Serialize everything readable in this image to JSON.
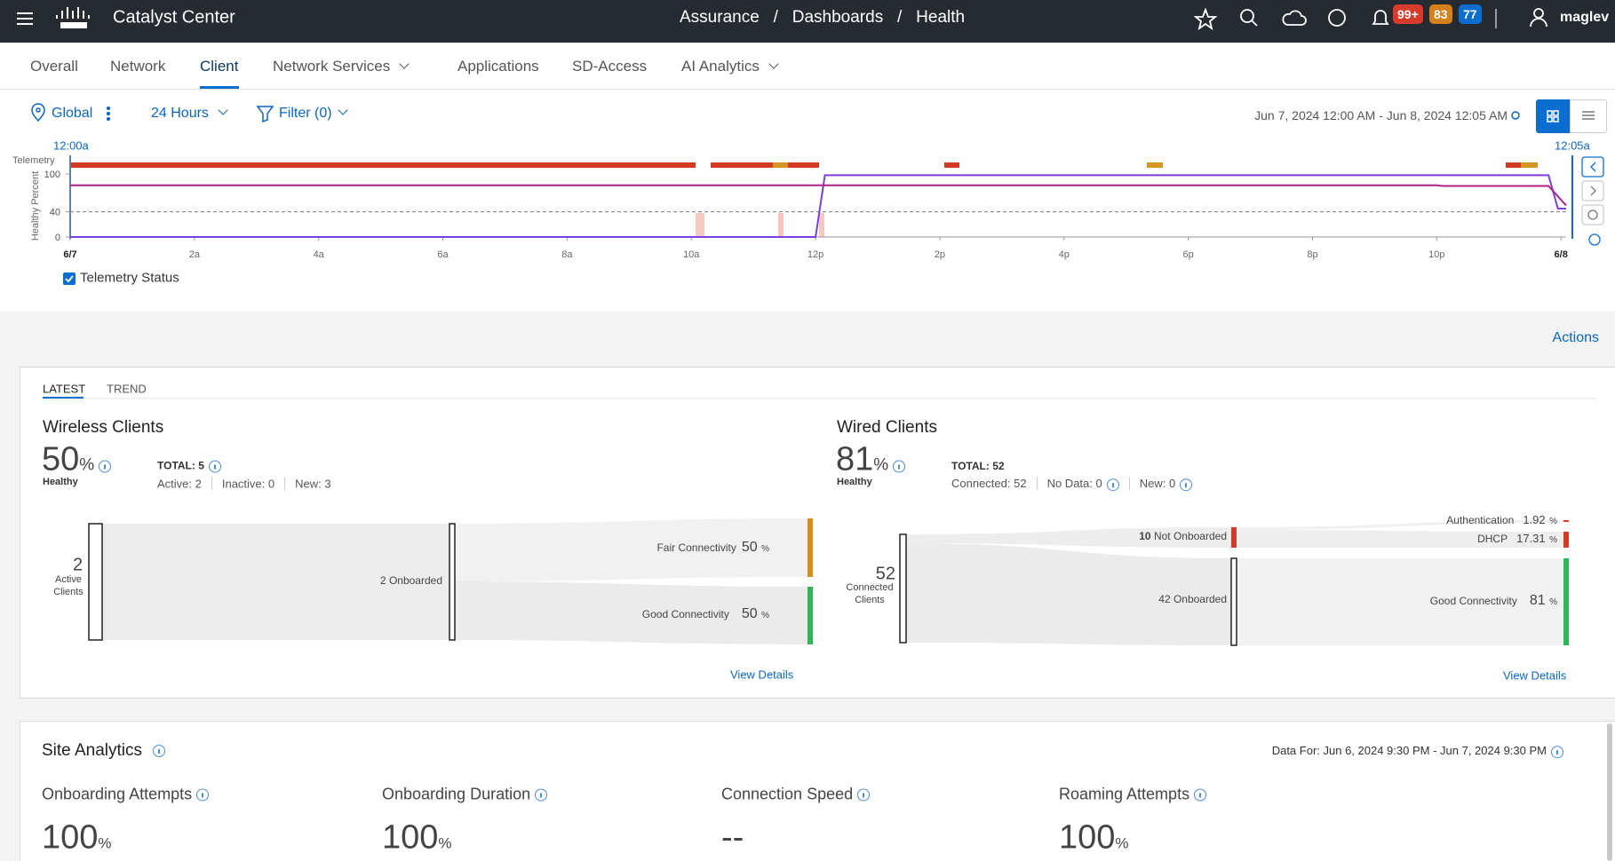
{
  "header": {
    "product": "Catalyst Center",
    "breadcrumb": [
      "Assurance",
      "/",
      "Dashboards",
      "/",
      "Health"
    ],
    "badges": [
      "99+",
      "83",
      "77"
    ],
    "user": "maglev"
  },
  "tabs": {
    "items": [
      "Overall",
      "Network",
      "Client",
      "Network Services",
      "Applications",
      "SD-Access",
      "AI Analytics"
    ],
    "active": 2
  },
  "filters": {
    "location": "Global",
    "range": "24 Hours",
    "filter": "Filter (0)",
    "date_range": "Jun 7, 2024 12:00 AM - Jun 8, 2024 12:05 AM"
  },
  "timeline": {
    "start_label": "12:00a",
    "end_label": "12:05a",
    "telemetry_label": "Telemetry",
    "y_title": "Healthy Percent",
    "xlim": [
      0,
      24.083
    ],
    "ylim": [
      0,
      100
    ],
    "yticks": [
      0,
      40,
      100
    ],
    "threshold": 40,
    "xticks": [
      {
        "value": 0,
        "label": "6/7"
      },
      {
        "value": 2,
        "label": "2a"
      },
      {
        "value": 4,
        "label": "4a"
      },
      {
        "value": 6,
        "label": "6a"
      },
      {
        "value": 8,
        "label": "8a"
      },
      {
        "value": 10,
        "label": "10a"
      },
      {
        "value": 12,
        "label": "12p"
      },
      {
        "value": 14,
        "label": "2p"
      },
      {
        "value": 16,
        "label": "4p"
      },
      {
        "value": 18,
        "label": "6p"
      },
      {
        "value": 20,
        "label": "8p"
      },
      {
        "value": 22,
        "label": "10p"
      },
      {
        "value": 24,
        "label": "6/8"
      }
    ],
    "series": [
      {
        "color": "#7b3fe4",
        "x": [
          0,
          12,
          12.15,
          23.8,
          23.95,
          24.083
        ],
        "values": [
          0,
          0,
          98,
          98,
          45,
          45
        ]
      },
      {
        "color": "#b0208a",
        "x": [
          0,
          22,
          22.1,
          23.8,
          24.083
        ],
        "values": [
          82,
          82,
          81,
          81,
          50
        ]
      }
    ],
    "legend": "Telemetry Status"
  },
  "actions": "Actions",
  "health": {
    "tabs": [
      "LATEST",
      "TREND"
    ],
    "wireless": {
      "title": "Wireless Clients",
      "score": "50",
      "unit": "%",
      "status": "Healthy",
      "total": "TOTAL: 5",
      "stats": [
        "Active: 2",
        "Inactive: 0",
        "New: 3"
      ],
      "active_count": "2",
      "active_label": "Active Clients",
      "onboarded": "2 Onboarded",
      "fair_label": "Fair Connectivity",
      "fair_value": "50",
      "fair_unit": "%",
      "good_label": "Good Connectivity",
      "good_value": "50",
      "good_unit": "%",
      "link": "View Details"
    },
    "wired": {
      "title": "Wired Clients",
      "score": "81",
      "unit": "%",
      "status": "Healthy",
      "total": "TOTAL: 52",
      "stats": [
        "Connected: 52",
        "No Data: 0",
        "New: 0"
      ],
      "connected_count": "52",
      "connected_label": "Connected Clients",
      "not_onboarded_count": "10",
      "not_onboarded_label": "Not Onboarded",
      "onboarded": "42 Onboarded",
      "auth_label": "Authentication",
      "auth_value": "1.92",
      "auth_unit": "%",
      "dhcp_label": "DHCP",
      "dhcp_value": "17.31",
      "dhcp_unit": "%",
      "good_label": "Good Connectivity",
      "good_value": "81",
      "good_unit": "%",
      "link": "View Details"
    }
  },
  "site_analytics": {
    "title": "Site Analytics",
    "data_for": "Data For: Jun 6, 2024 9:30 PM - Jun 7, 2024 9:30 PM",
    "metrics": [
      {
        "name": "Onboarding Attempts",
        "value": "100",
        "unit": "%"
      },
      {
        "name": "Onboarding Duration",
        "value": "100",
        "unit": "%"
      },
      {
        "name": "Connection Speed",
        "value": "--"
      },
      {
        "name": "Roaming Attempts",
        "value": "100",
        "unit": "%"
      }
    ]
  }
}
